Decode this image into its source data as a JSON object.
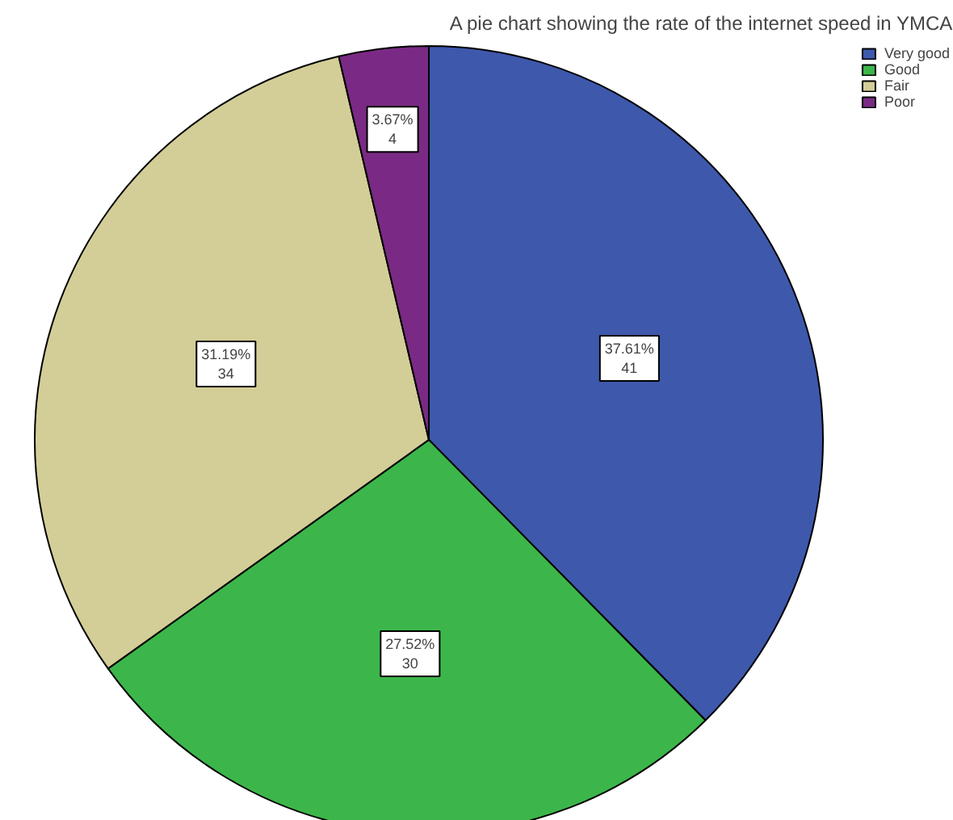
{
  "chart_data": {
    "type": "pie",
    "title": "A pie chart showing the rate of the internet speed in YMCA",
    "categories": [
      "Very good",
      "Good",
      "Fair",
      "Poor"
    ],
    "values": [
      37.61,
      27.52,
      31.19,
      3.67
    ],
    "colors": [
      "#3e58ac",
      "#3cb64a",
      "#d3ce97",
      "#7a2a84"
    ],
    "value_labels": [
      "37.61%\n41",
      "27.52%\n30",
      "31.19%\n34",
      "3.67%\n4"
    ],
    "legend": "top right"
  }
}
